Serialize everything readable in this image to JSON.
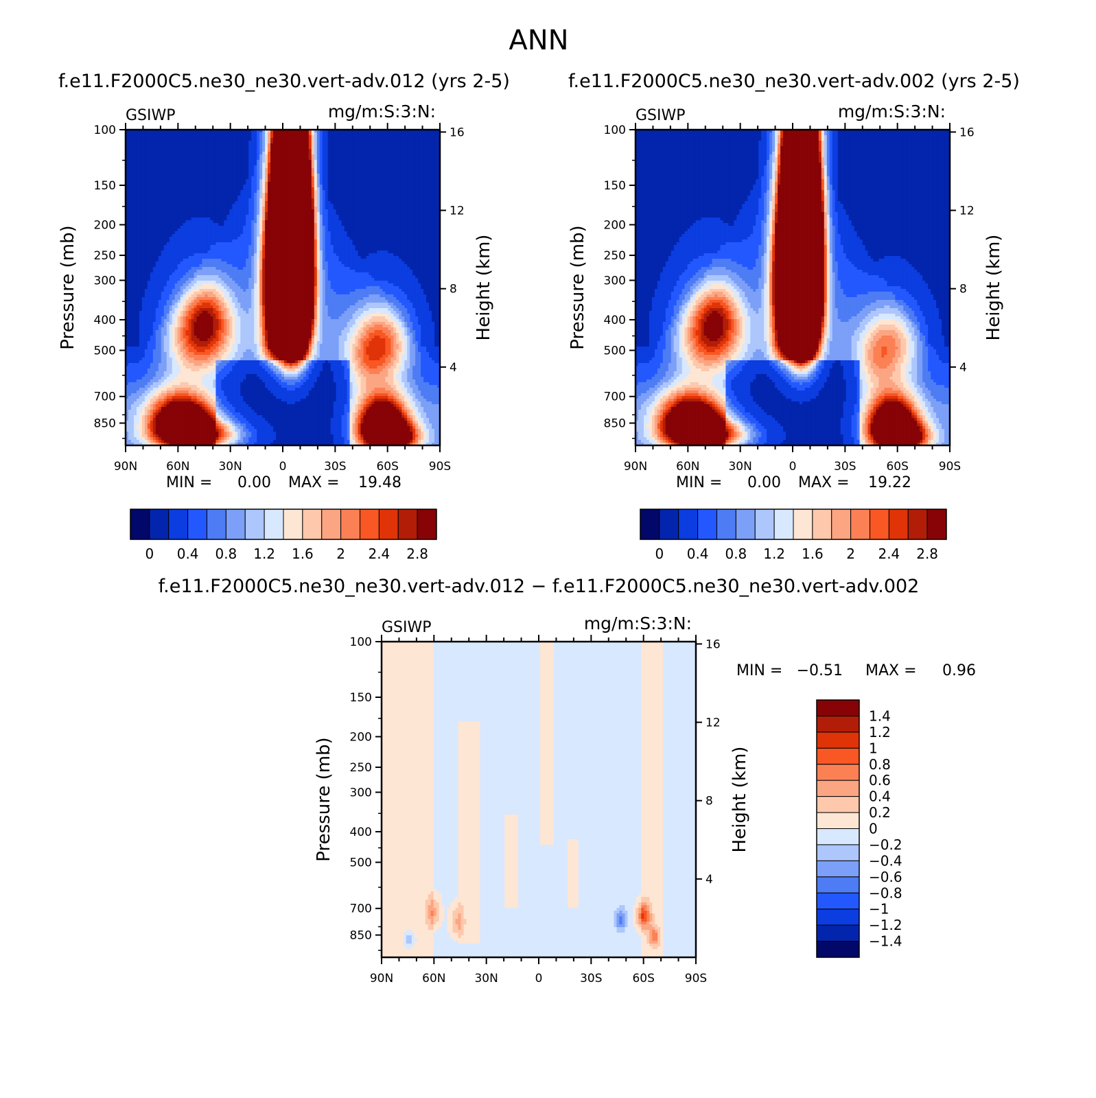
{
  "figure": {
    "title": "ANN"
  },
  "chart_data": [
    {
      "type": "contour",
      "title": "f.e11.F2000C5.ne30_ne30.vert-adv.012 (yrs 2-5)",
      "variable": "GSIWP",
      "units": "mg/m:S:3:N:",
      "xlabel": "",
      "ylabel": "Pressure (mb)",
      "y2label": "Height (km)",
      "x_ticks": [
        "90N",
        "60N",
        "30N",
        "0",
        "30S",
        "60S",
        "90S"
      ],
      "y_ticks": [
        100,
        150,
        200,
        250,
        300,
        400,
        500,
        700,
        850
      ],
      "y2_ticks": [
        16,
        12,
        8,
        4
      ],
      "ylim": [
        100,
        1000
      ],
      "stats": {
        "min_label": "MIN =",
        "min": "0.00",
        "max_label": "MAX =",
        "max": "19.48"
      },
      "colorbar": {
        "orientation": "horizontal",
        "labels": [
          "0",
          "0.4",
          "0.8",
          "1.2",
          "1.6",
          "2",
          "2.4",
          "2.8"
        ]
      },
      "features": [
        {
          "lat": -5,
          "p": 260,
          "value": 19.5
        },
        {
          "lat": 5,
          "p": 270,
          "value": 6
        },
        {
          "lat": 52,
          "p": 420,
          "value": 2.4
        },
        {
          "lat": 55,
          "p": 820,
          "value": 3.0
        },
        {
          "lat": -57,
          "p": 800,
          "value": 3.0
        },
        {
          "lat": -58,
          "p": 450,
          "value": 2.0
        }
      ]
    },
    {
      "type": "contour",
      "title": "f.e11.F2000C5.ne30_ne30.vert-adv.002 (yrs 2-5)",
      "variable": "GSIWP",
      "units": "mg/m:S:3:N:",
      "xlabel": "",
      "ylabel": "Pressure (mb)",
      "y2label": "Height (km)",
      "x_ticks": [
        "90N",
        "60N",
        "30N",
        "0",
        "30S",
        "60S",
        "90S"
      ],
      "y_ticks": [
        100,
        150,
        200,
        250,
        300,
        400,
        500,
        700,
        850
      ],
      "y2_ticks": [
        16,
        12,
        8,
        4
      ],
      "ylim": [
        100,
        1000
      ],
      "stats": {
        "min_label": "MIN =",
        "min": "0.00",
        "max_label": "MAX =",
        "max": "19.22"
      },
      "colorbar": {
        "orientation": "horizontal",
        "labels": [
          "0",
          "0.4",
          "0.8",
          "1.2",
          "1.6",
          "2",
          "2.4",
          "2.8"
        ]
      },
      "features": [
        {
          "lat": -5,
          "p": 260,
          "value": 19.2
        },
        {
          "lat": 5,
          "p": 270,
          "value": 6
        },
        {
          "lat": 52,
          "p": 420,
          "value": 2.3
        },
        {
          "lat": 55,
          "p": 820,
          "value": 3.0
        },
        {
          "lat": -57,
          "p": 800,
          "value": 3.0
        },
        {
          "lat": -58,
          "p": 450,
          "value": 1.9
        }
      ]
    },
    {
      "type": "contour",
      "title": "f.e11.F2000C5.ne30_ne30.vert-adv.012 − f.e11.F2000C5.ne30_ne30.vert-adv.002",
      "variable": "GSIWP",
      "units": "mg/m:S:3:N:",
      "xlabel": "",
      "ylabel": "Pressure (mb)",
      "y2label": "Height (km)",
      "x_ticks": [
        "90N",
        "60N",
        "30N",
        "0",
        "30S",
        "60S",
        "90S"
      ],
      "y_ticks": [
        100,
        150,
        200,
        250,
        300,
        400,
        500,
        700,
        850
      ],
      "y2_ticks": [
        16,
        12,
        8,
        4
      ],
      "ylim": [
        100,
        1000
      ],
      "stats": {
        "min_label": "MIN =",
        "min": "−0.51",
        "max_label": "MAX =",
        "max": "0.96"
      },
      "colorbar": {
        "orientation": "vertical",
        "labels": [
          "1.4",
          "1.2",
          "1",
          "0.8",
          "0.6",
          "0.4",
          "0.2",
          "0",
          "−0.2",
          "−0.4",
          "−0.6",
          "−0.8",
          "−1",
          "−1.2",
          "−1.4"
        ]
      },
      "features": [
        {
          "lat": -60,
          "p": 740,
          "value": 0.96
        },
        {
          "lat": 60,
          "p": 720,
          "value": 0.6
        },
        {
          "lat": 47,
          "p": 760,
          "value": 0.5
        },
        {
          "lat": -47,
          "p": 740,
          "value": -0.51
        },
        {
          "lat": 75,
          "p": 870,
          "value": -0.4
        }
      ]
    }
  ],
  "colors": {
    "seq": [
      "#02076a",
      "#0325ad",
      "#0b3de0",
      "#2458ff",
      "#4d7cf4",
      "#7c9ff8",
      "#adc6fc",
      "#d8e8fe",
      "#fde6d4",
      "#fdc8ac",
      "#fca583",
      "#fb8155",
      "#f95723",
      "#e03408",
      "#b21d08",
      "#870306"
    ],
    "diff": [
      "#02076a",
      "#0325ad",
      "#0b3de0",
      "#2458ff",
      "#4d7cf4",
      "#7c9ff8",
      "#adc6fc",
      "#d8e8fe",
      "#fde6d4",
      "#fdc8ac",
      "#fca583",
      "#fb8155",
      "#f95723",
      "#e03408",
      "#b21d08",
      "#870306"
    ]
  }
}
